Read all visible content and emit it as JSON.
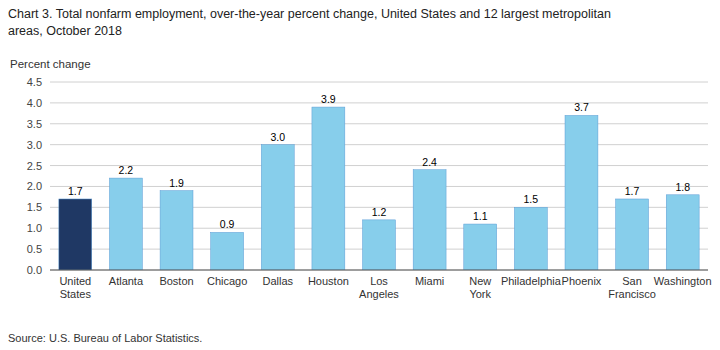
{
  "chart_data": {
    "type": "bar",
    "title": "Chart 3. Total nonfarm employment, over-the-year percent change, United States and 12 largest metropolitan\nareas, October 2018",
    "y_label": "Percent change",
    "source": "Source: U.S. Bureau of Labor Statistics.",
    "categories": [
      "United\nStates",
      "Atlanta",
      "Boston",
      "Chicago",
      "Dallas",
      "Houston",
      "Los\nAngeles",
      "Miami",
      "New\nYork",
      "Philadelphia",
      "Phoenix",
      "San\nFrancisco",
      "Washington"
    ],
    "values": [
      1.7,
      2.2,
      1.9,
      0.9,
      3.0,
      3.9,
      1.2,
      2.4,
      1.1,
      1.5,
      3.7,
      1.7,
      1.8
    ],
    "value_labels": [
      "1.7",
      "2.2",
      "1.9",
      "0.9",
      "3.0",
      "3.9",
      "1.2",
      "2.4",
      "1.1",
      "1.5",
      "3.7",
      "1.7",
      "1.8"
    ],
    "colors": [
      "#1f3864",
      "#87ceeb",
      "#87ceeb",
      "#87ceeb",
      "#87ceeb",
      "#87ceeb",
      "#87ceeb",
      "#87ceeb",
      "#87ceeb",
      "#87ceeb",
      "#87ceeb",
      "#87ceeb",
      "#87ceeb"
    ],
    "data_labels": true,
    "ylim": [
      0,
      4.5
    ],
    "yticks": [
      {
        "value": 0,
        "label": "0.0"
      },
      0.5,
      {
        "value": 1,
        "label": "1.0"
      },
      1.5,
      {
        "value": 2,
        "label": "2.0"
      },
      2.5,
      {
        "value": 3,
        "label": "3.0"
      },
      3.5,
      {
        "value": 4,
        "label": "4.0"
      },
      4.5
    ],
    "grid": true
  }
}
